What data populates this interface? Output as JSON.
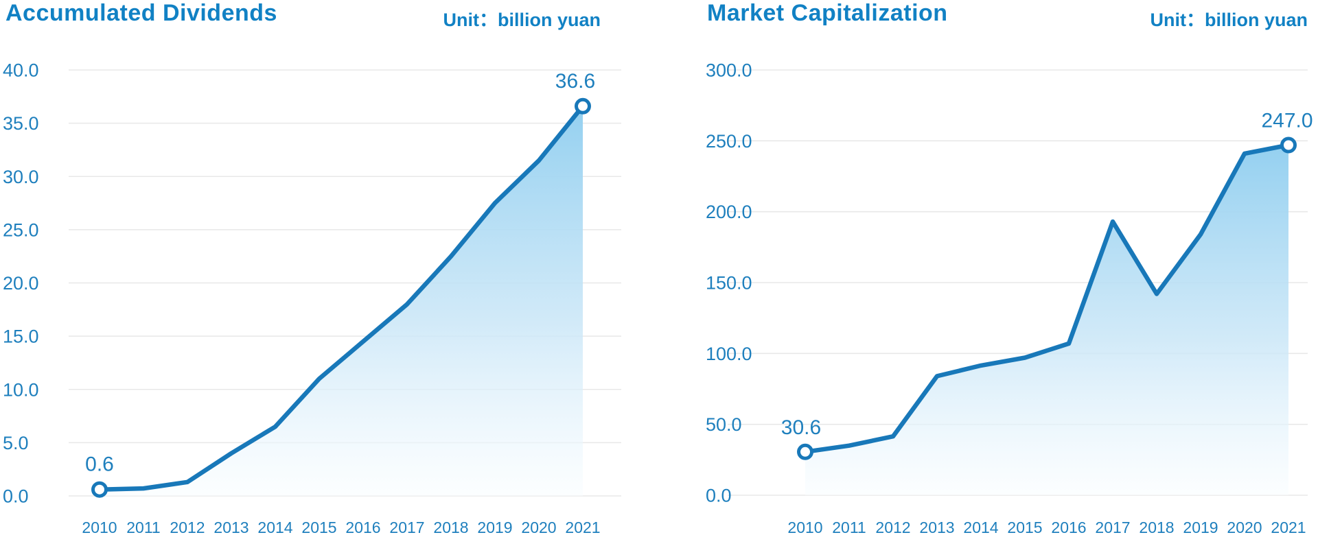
{
  "page": {
    "background": "#ffffff"
  },
  "chart_data": [
    {
      "type": "area",
      "title": "Accumulated Dividends",
      "unit_label": "Unit：billion yuan",
      "categories": [
        "2010",
        "2011",
        "2012",
        "2013",
        "2014",
        "2015",
        "2016",
        "2017",
        "2018",
        "2019",
        "2020",
        "2021"
      ],
      "values": [
        0.6,
        0.7,
        1.3,
        4.0,
        6.5,
        11.0,
        14.5,
        18.0,
        22.5,
        27.5,
        31.5,
        36.6
      ],
      "first_point_label": "0.6",
      "last_point_label": "36.6",
      "xlabel": "",
      "ylabel": "",
      "ylim": [
        0,
        40
      ],
      "ytick_step": 5,
      "ytick_decimals": 1,
      "grid": true,
      "legend": "none",
      "colors": {
        "line": "#1878b9",
        "fill_top": "#94d0f0",
        "fill_mid": "#c9e6f7",
        "fill_bottom": "#f9fdff",
        "grid": "#e8e8e8",
        "text": "#1e7fbd",
        "marker_fill": "#ffffff"
      }
    },
    {
      "type": "area",
      "title": "Market Capitalization",
      "unit_label": "Unit：billion yuan",
      "categories": [
        "2010",
        "2011",
        "2012",
        "2013",
        "2014",
        "2015",
        "2016",
        "2017",
        "2018",
        "2019",
        "2020",
        "2021"
      ],
      "values": [
        30.6,
        35.0,
        41.5,
        84.0,
        91.5,
        97.0,
        107.0,
        193.0,
        142.0,
        184.0,
        241.0,
        247.0
      ],
      "first_point_label": "30.6",
      "last_point_label": "247.0",
      "xlabel": "",
      "ylabel": "",
      "ylim": [
        0,
        300
      ],
      "ytick_step": 50,
      "ytick_decimals": 1,
      "grid": true,
      "legend": "none",
      "colors": {
        "line": "#1878b9",
        "fill_top": "#94d0f0",
        "fill_mid": "#c9e6f7",
        "fill_bottom": "#f9fdff",
        "grid": "#e8e8e8",
        "text": "#1e7fbd",
        "marker_fill": "#ffffff"
      }
    }
  ]
}
